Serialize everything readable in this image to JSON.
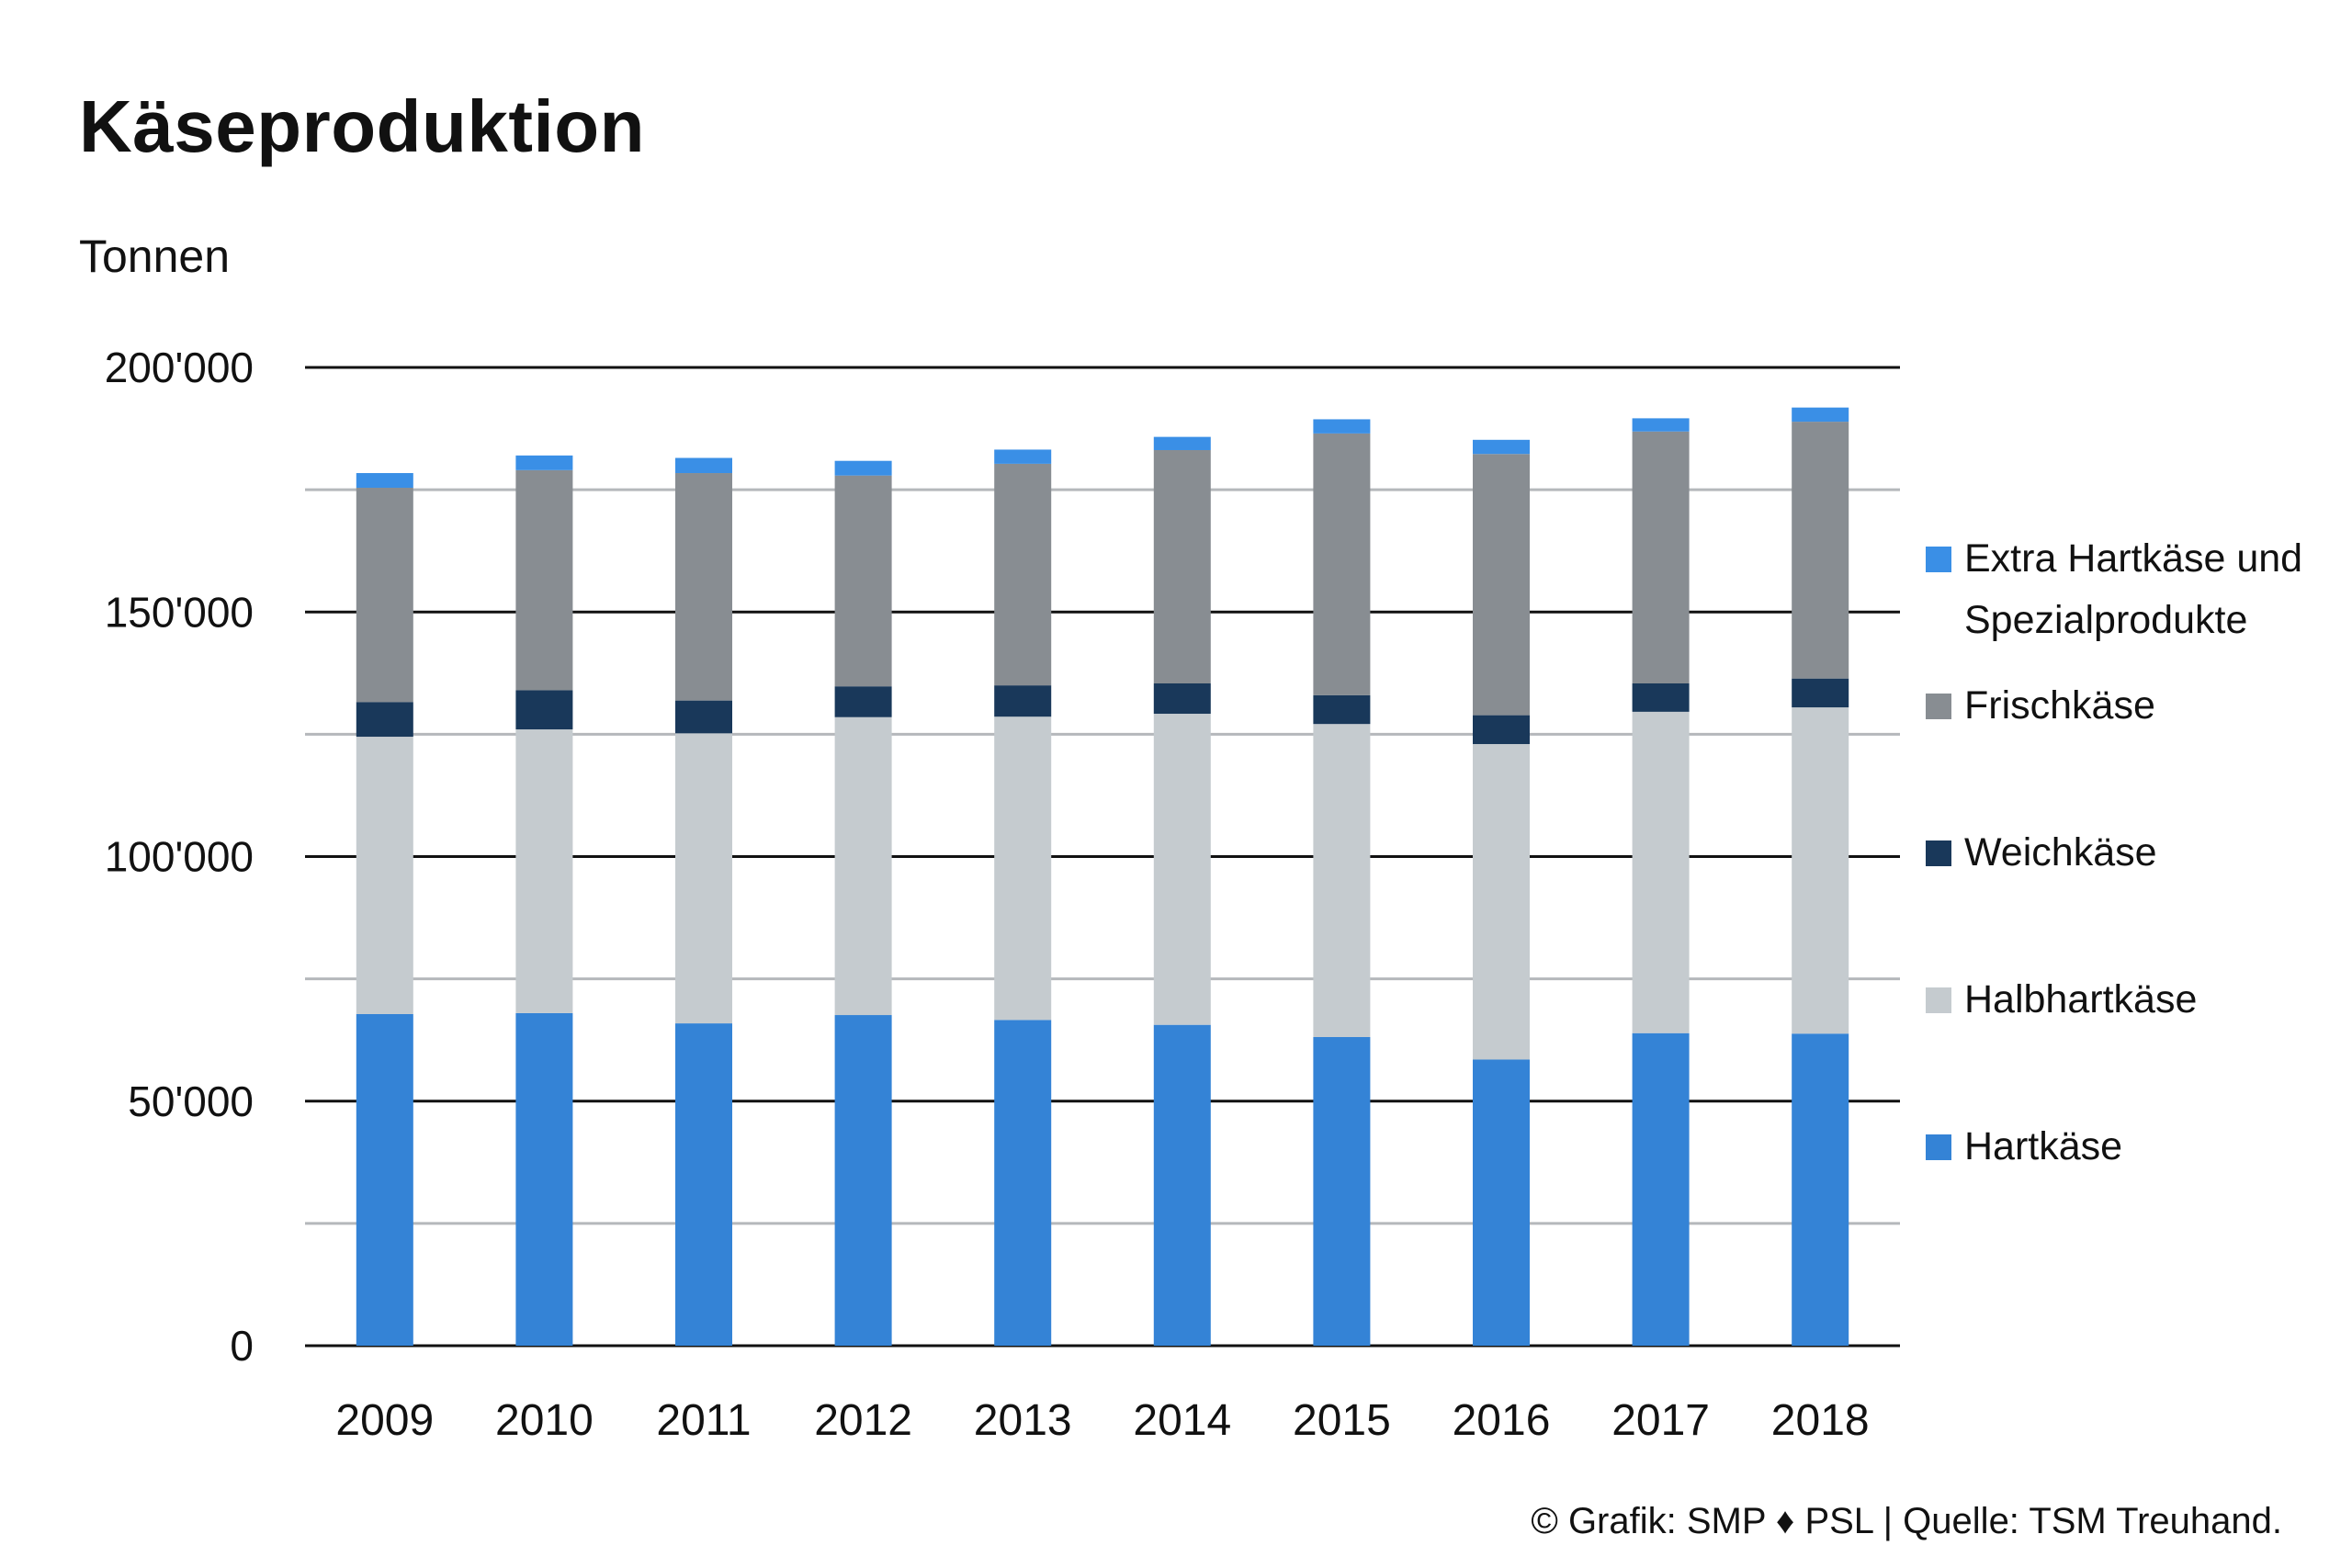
{
  "header": {
    "title": "Käseproduktion",
    "unit_label": "Tonnen"
  },
  "footer": {
    "credit": "© Grafik: SMP ♦ PSL | Quelle: TSM Treuhand."
  },
  "chart_data": {
    "type": "bar",
    "stacked": true,
    "title": "Käseproduktion",
    "ylabel": "Tonnen",
    "xlabel": "",
    "categories": [
      "2009",
      "2010",
      "2011",
      "2012",
      "2013",
      "2014",
      "2015",
      "2016",
      "2017",
      "2018"
    ],
    "ylim": [
      0,
      200000
    ],
    "yticks": [
      0,
      50000,
      100000,
      150000,
      200000
    ],
    "ytick_labels": [
      "0",
      "50'000",
      "100'000",
      "150'000",
      "200'000"
    ],
    "grid": true,
    "legend_position": "right",
    "series": [
      {
        "name": "Hartkäse",
        "color": "#3483d6",
        "values": [
          67800,
          68000,
          65900,
          67600,
          66600,
          65600,
          63100,
          58500,
          63900,
          63800
        ]
      },
      {
        "name": "Halbhartkäse",
        "color": "#c5cbcf",
        "values": [
          56700,
          58000,
          59300,
          60900,
          62000,
          63600,
          64000,
          64500,
          65700,
          66700
        ]
      },
      {
        "name": "Weichkäse",
        "color": "#19385a",
        "values": [
          7100,
          8000,
          6700,
          6300,
          6400,
          6200,
          5900,
          5900,
          5800,
          5900
        ]
      },
      {
        "name": "Frischkäse",
        "color": "#888d92",
        "values": [
          43800,
          45000,
          46500,
          43100,
          45300,
          47700,
          53500,
          53400,
          51500,
          52500
        ]
      },
      {
        "name": "Extra Hartkäse und Spezialprodukte",
        "color": "#3a8fe6",
        "values": [
          3000,
          3000,
          3100,
          3000,
          2900,
          2700,
          2900,
          2900,
          2700,
          2900
        ]
      }
    ]
  }
}
